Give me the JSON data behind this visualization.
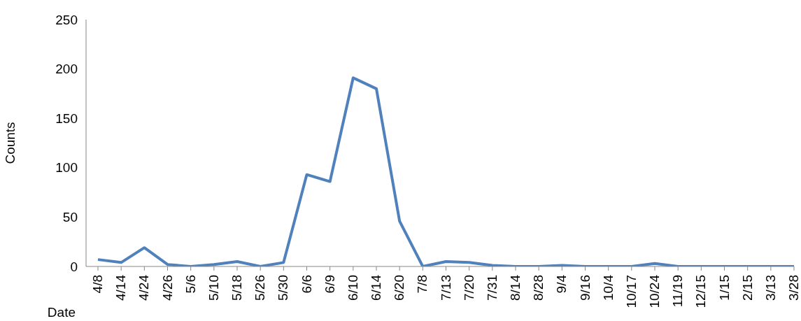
{
  "chart_data": {
    "type": "line",
    "xlabel": "Date",
    "ylabel": "Counts",
    "categories": [
      "4/8",
      "4/14",
      "4/24",
      "4/26",
      "5/6",
      "5/10",
      "5/18",
      "5/26",
      "5/30",
      "6/6",
      "6/9",
      "6/10",
      "6/14",
      "6/20",
      "7/8",
      "7/13",
      "7/20",
      "7/31",
      "8/14",
      "8/28",
      "9/4",
      "9/16",
      "10/4",
      "10/17",
      "10/24",
      "11/19",
      "12/15",
      "1/15",
      "2/15",
      "3/13",
      "3/28"
    ],
    "series": [
      {
        "color": "#4f81bd",
        "values": [
          7,
          4,
          19,
          2,
          0,
          2,
          5,
          0,
          4,
          93,
          86,
          191,
          180,
          46,
          0,
          5,
          4,
          1,
          0,
          0,
          1,
          0,
          0,
          0,
          3,
          0,
          0,
          0,
          0,
          0,
          0
        ]
      }
    ],
    "ylim": [
      0,
      250
    ],
    "yticks": [
      0,
      50,
      100,
      150,
      200,
      250
    ],
    "grid": false,
    "legend": false,
    "marker": "none",
    "line_style": "solid"
  }
}
